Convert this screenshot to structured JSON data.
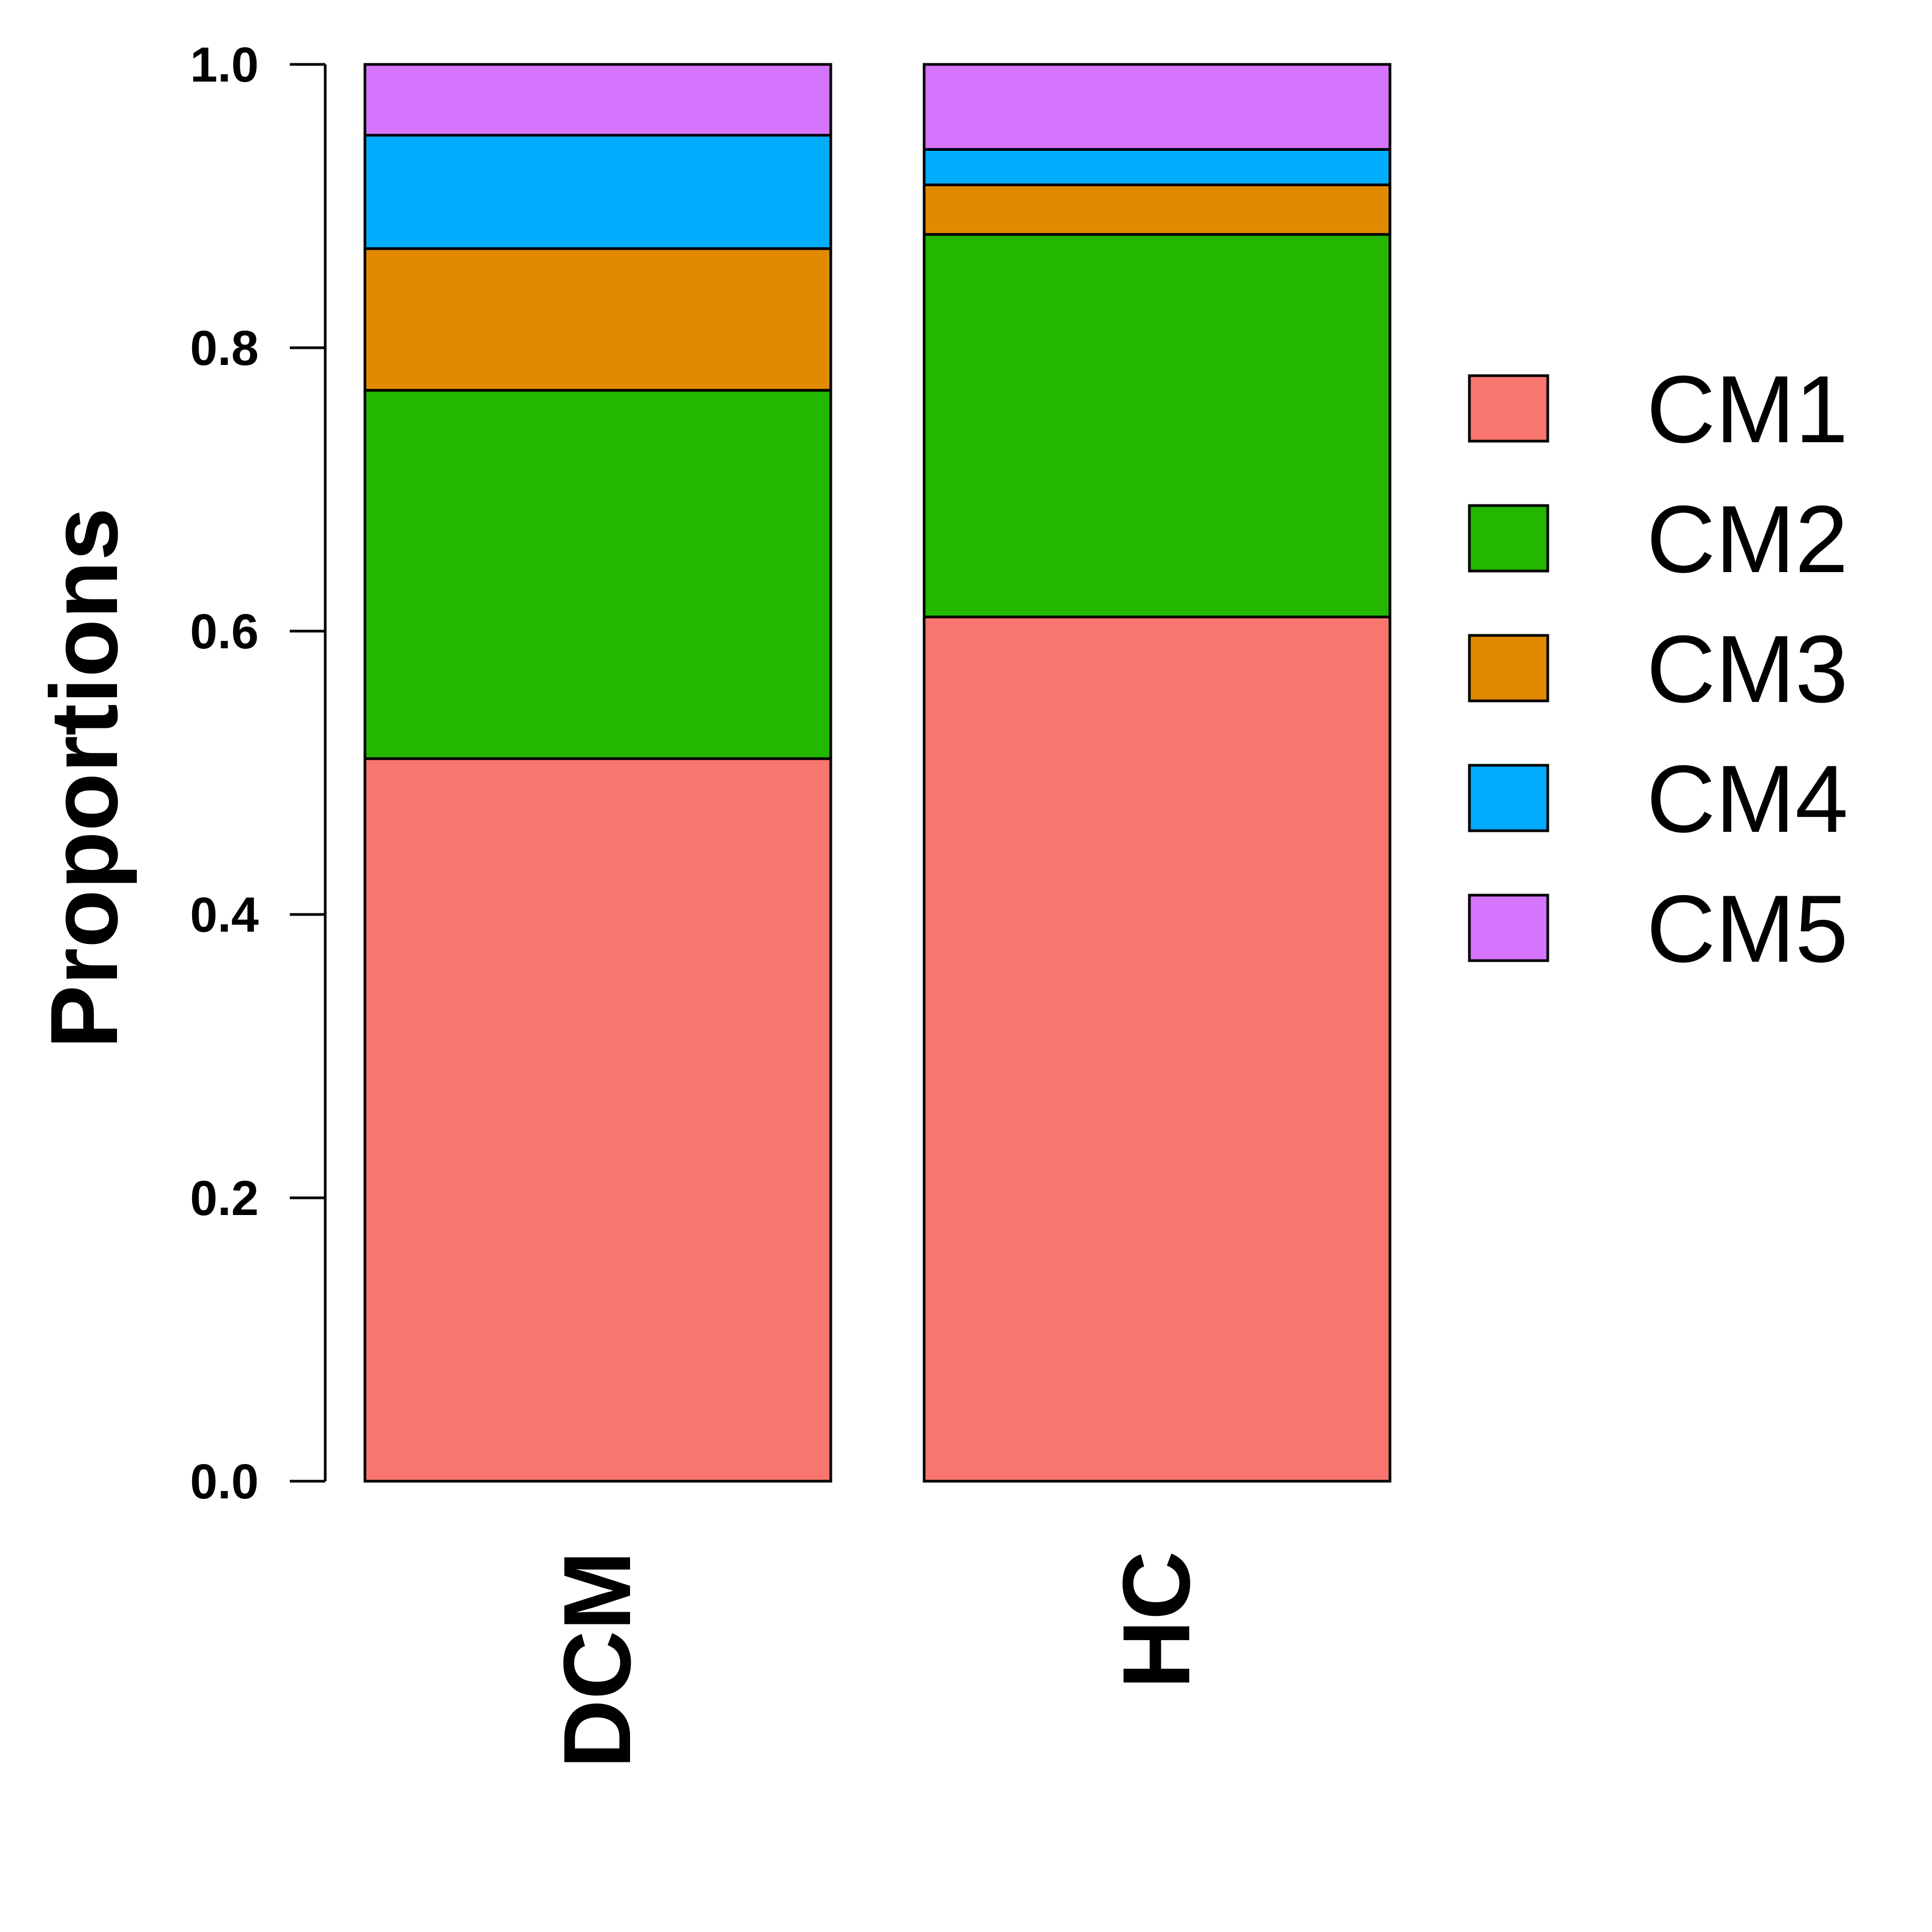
{
  "chart_data": {
    "type": "bar",
    "stacked": true,
    "categories": [
      "DCM",
      "HC"
    ],
    "ylabel": "Proportions",
    "xlabel": "",
    "title": "",
    "ylim": [
      0,
      1
    ],
    "yticks": [
      "0.0",
      "0.2",
      "0.4",
      "0.6",
      "0.8",
      "1.0"
    ],
    "legend_position": "right",
    "grid": false,
    "series": [
      {
        "name": "CM1",
        "color": "#F8766D",
        "values": [
          0.51,
          0.61
        ]
      },
      {
        "name": "CM2",
        "color": "#24B700",
        "values": [
          0.26,
          0.27
        ]
      },
      {
        "name": "CM3",
        "color": "#E18A00",
        "values": [
          0.1,
          0.035
        ]
      },
      {
        "name": "CM4",
        "color": "#00ACFC",
        "values": [
          0.08,
          0.025
        ]
      },
      {
        "name": "CM5",
        "color": "#D575FE",
        "values": [
          0.05,
          0.06
        ]
      }
    ]
  }
}
